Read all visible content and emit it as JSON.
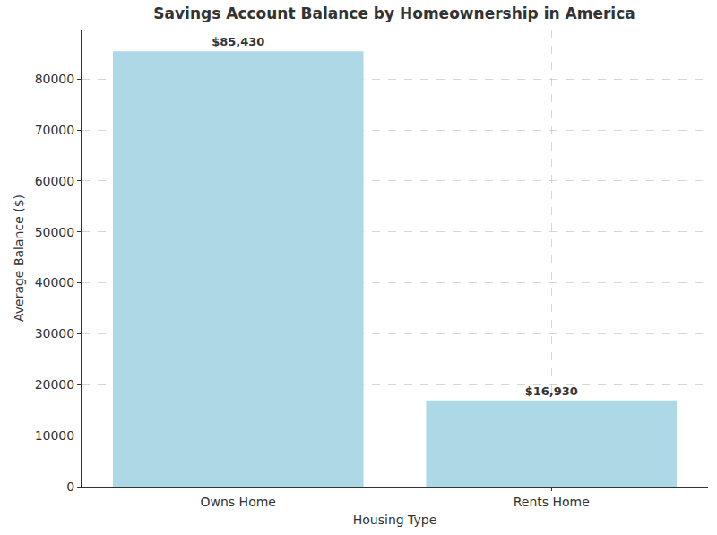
{
  "chart_data": {
    "type": "bar",
    "title": "Savings Account Balance by Homeownership in America",
    "x_label": "Housing Type",
    "y_label": "Average Balance ($)",
    "categories": [
      "Owns Home",
      "Rents Home"
    ],
    "values": [
      85430,
      16930
    ],
    "value_labels": [
      "$85,430",
      "$16,930"
    ],
    "data_labels": true,
    "color": "#add8e6",
    "ylim": [
      0,
      89700
    ],
    "yticks": [
      0,
      10000,
      20000,
      30000,
      40000,
      50000,
      60000,
      70000,
      80000
    ],
    "grid": true
  }
}
